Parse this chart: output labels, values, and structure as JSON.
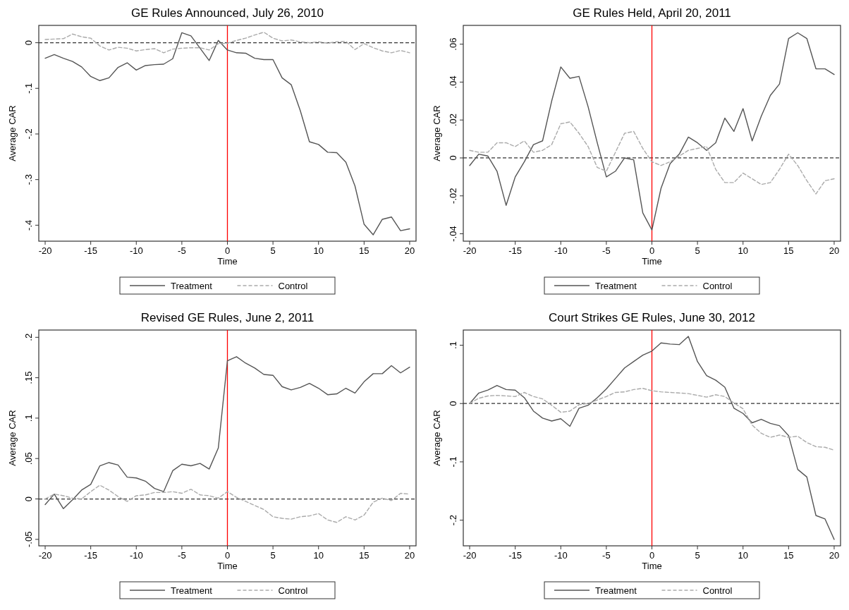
{
  "chart_data": [
    {
      "type": "line",
      "title": "GE Rules Announced, July 26, 2010",
      "xlabel": "Time",
      "ylabel": "Average CAR",
      "legend": "bottom",
      "x": [
        -20,
        -19,
        -18,
        -17,
        -16,
        -15,
        -14,
        -13,
        -12,
        -11,
        -10,
        -9,
        -8,
        -7,
        -6,
        -5,
        -4,
        -3,
        -2,
        -1,
        0,
        1,
        2,
        3,
        4,
        5,
        6,
        7,
        8,
        9,
        10,
        11,
        12,
        13,
        14,
        15,
        16,
        17,
        18,
        19,
        20
      ],
      "xlim": [
        -20.7,
        20.7
      ],
      "xticks": [
        -20,
        -15,
        -10,
        -5,
        0,
        5,
        10,
        15,
        20
      ],
      "ylim": [
        -0.435,
        0.038
      ],
      "yticks": [
        {
          "value": -0.4,
          "label": "-.4"
        },
        {
          "value": -0.3,
          "label": "-.3"
        },
        {
          "value": -0.2,
          "label": "-.2"
        },
        {
          "value": -0.1,
          "label": "-.1"
        },
        {
          "value": 0,
          "label": "0"
        }
      ],
      "grid": false,
      "marker": "none",
      "ref_lines": [
        {
          "axis": "y",
          "value": 0,
          "color": "#333333",
          "line_style": "dashed"
        },
        {
          "axis": "x",
          "value": 0,
          "color": "#ff0000"
        }
      ],
      "series": [
        {
          "name": "Treatment",
          "color": "#555555",
          "line_style": "solid",
          "values": [
            -0.034,
            -0.026,
            -0.034,
            -0.041,
            -0.053,
            -0.074,
            -0.083,
            -0.077,
            -0.054,
            -0.044,
            -0.06,
            -0.05,
            -0.048,
            -0.047,
            -0.035,
            0.022,
            0.015,
            -0.012,
            -0.039,
            0.005,
            -0.016,
            -0.022,
            -0.023,
            -0.034,
            -0.037,
            -0.037,
            -0.077,
            -0.092,
            -0.149,
            -0.217,
            -0.223,
            -0.24,
            -0.241,
            -0.262,
            -0.314,
            -0.398,
            -0.421,
            -0.387,
            -0.382,
            -0.412,
            -0.408
          ]
        },
        {
          "name": "Control",
          "color": "#aaaaaa",
          "line_style": "dashed",
          "values": [
            0.007,
            0.008,
            0.009,
            0.019,
            0.013,
            0.01,
            -0.007,
            -0.016,
            -0.01,
            -0.012,
            -0.018,
            -0.015,
            -0.013,
            -0.022,
            -0.014,
            -0.012,
            -0.011,
            -0.011,
            -0.016,
            -0.002,
            -0.001,
            0.005,
            0.01,
            0.017,
            0.023,
            0.01,
            0.004,
            0.006,
            0.002,
            0.0,
            0.002,
            -0.001,
            0.002,
            0.003,
            -0.015,
            -0.002,
            -0.011,
            -0.018,
            -0.022,
            -0.017,
            -0.022
          ]
        }
      ]
    },
    {
      "type": "line",
      "title": "GE Rules Held, April 20, 2011",
      "xlabel": "Time",
      "ylabel": "Average CAR",
      "legend": "bottom",
      "x": [
        -20,
        -19,
        -18,
        -17,
        -16,
        -15,
        -14,
        -13,
        -12,
        -11,
        -10,
        -9,
        -8,
        -7,
        -6,
        -5,
        -4,
        -3,
        -2,
        -1,
        0,
        1,
        2,
        3,
        4,
        5,
        6,
        7,
        8,
        9,
        10,
        11,
        12,
        13,
        14,
        15,
        16,
        17,
        18,
        19,
        20
      ],
      "xlim": [
        -20.7,
        20.7
      ],
      "xticks": [
        -20,
        -15,
        -10,
        -5,
        0,
        5,
        10,
        15,
        20
      ],
      "ylim": [
        -0.0439,
        0.0699
      ],
      "yticks": [
        {
          "value": -0.04,
          "label": "-.04"
        },
        {
          "value": -0.02,
          "label": "-.02"
        },
        {
          "value": 0,
          "label": "0"
        },
        {
          "value": 0.02,
          "label": ".02"
        },
        {
          "value": 0.04,
          "label": ".04"
        },
        {
          "value": 0.06,
          "label": ".06"
        }
      ],
      "grid": false,
      "marker": "none",
      "ref_lines": [
        {
          "axis": "y",
          "value": 0,
          "color": "#333333",
          "line_style": "dashed"
        },
        {
          "axis": "x",
          "value": 0,
          "color": "#ff0000"
        }
      ],
      "series": [
        {
          "name": "Treatment",
          "color": "#555555",
          "line_style": "solid",
          "values": [
            -0.004,
            0.002,
            0.001,
            -0.007,
            -0.025,
            -0.01,
            -0.002,
            0.007,
            0.009,
            0.03,
            0.048,
            0.042,
            0.043,
            0.027,
            0.008,
            -0.01,
            -0.007,
            0.0,
            -0.001,
            -0.029,
            -0.038,
            -0.016,
            -0.003,
            0.002,
            0.011,
            0.008,
            0.004,
            0.008,
            0.021,
            0.014,
            0.026,
            0.009,
            0.022,
            0.033,
            0.039,
            0.063,
            0.066,
            0.063,
            0.047,
            0.047,
            0.044
          ]
        },
        {
          "name": "Control",
          "color": "#aaaaaa",
          "line_style": "dashed",
          "values": [
            0.004,
            0.003,
            0.003,
            0.008,
            0.008,
            0.006,
            0.009,
            0.003,
            0.004,
            0.007,
            0.018,
            0.019,
            0.013,
            0.006,
            -0.005,
            -0.007,
            0.003,
            0.013,
            0.014,
            0.005,
            -0.002,
            -0.004,
            -0.002,
            0.001,
            0.004,
            0.005,
            0.006,
            -0.006,
            -0.013,
            -0.013,
            -0.008,
            -0.011,
            -0.014,
            -0.013,
            -0.006,
            0.002,
            -0.004,
            -0.012,
            -0.019,
            -0.012,
            -0.011
          ]
        }
      ]
    },
    {
      "type": "line",
      "title": "Revised GE Rules, June 2, 2011",
      "xlabel": "Time",
      "ylabel": "Average CAR",
      "legend": "bottom",
      "x": [
        -20,
        -19,
        -18,
        -17,
        -16,
        -15,
        -14,
        -13,
        -12,
        -11,
        -10,
        -9,
        -8,
        -7,
        -6,
        -5,
        -4,
        -3,
        -2,
        -1,
        0,
        1,
        2,
        3,
        4,
        5,
        6,
        7,
        8,
        9,
        10,
        11,
        12,
        13,
        14,
        15,
        16,
        17,
        18,
        19,
        20
      ],
      "xlim": [
        -20.7,
        20.7
      ],
      "xticks": [
        -20,
        -15,
        -10,
        -5,
        0,
        5,
        10,
        15,
        20
      ],
      "ylim": [
        -0.058,
        0.209
      ],
      "yticks": [
        {
          "value": -0.05,
          "label": "-.05"
        },
        {
          "value": 0,
          "label": "0"
        },
        {
          "value": 0.05,
          "label": ".05"
        },
        {
          "value": 0.1,
          "label": ".1"
        },
        {
          "value": 0.15,
          "label": ".15"
        },
        {
          "value": 0.2,
          "label": ".2"
        }
      ],
      "grid": false,
      "marker": "none",
      "ref_lines": [
        {
          "axis": "y",
          "value": 0,
          "color": "#333333",
          "line_style": "dashed"
        },
        {
          "axis": "x",
          "value": 0,
          "color": "#ff0000"
        }
      ],
      "series": [
        {
          "name": "Treatment",
          "color": "#555555",
          "line_style": "solid",
          "values": [
            -0.007,
            0.006,
            -0.012,
            -0.001,
            0.011,
            0.018,
            0.041,
            0.045,
            0.042,
            0.027,
            0.026,
            0.022,
            0.013,
            0.009,
            0.035,
            0.043,
            0.041,
            0.044,
            0.037,
            0.063,
            0.171,
            0.176,
            0.168,
            0.162,
            0.154,
            0.153,
            0.139,
            0.135,
            0.138,
            0.143,
            0.137,
            0.129,
            0.13,
            0.137,
            0.131,
            0.145,
            0.155,
            0.155,
            0.165,
            0.156,
            0.163
          ]
        },
        {
          "name": "Control",
          "color": "#aaaaaa",
          "line_style": "dashed",
          "values": [
            0.0,
            0.006,
            0.004,
            0.001,
            0.0,
            0.009,
            0.017,
            0.011,
            0.003,
            -0.003,
            0.004,
            0.005,
            0.008,
            0.008,
            0.009,
            0.007,
            0.012,
            0.005,
            0.004,
            0.001,
            0.009,
            0.002,
            -0.003,
            -0.008,
            -0.013,
            -0.022,
            -0.024,
            -0.025,
            -0.022,
            -0.021,
            -0.018,
            -0.026,
            -0.029,
            -0.022,
            -0.026,
            -0.02,
            -0.004,
            0.001,
            -0.002,
            0.007,
            0.006
          ]
        }
      ]
    },
    {
      "type": "line",
      "title": "Court Strikes GE Rules, June 30, 2012",
      "xlabel": "Time",
      "ylabel": "Average CAR",
      "legend": "bottom",
      "x": [
        -20,
        -19,
        -18,
        -17,
        -16,
        -15,
        -14,
        -13,
        -12,
        -11,
        -10,
        -9,
        -8,
        -7,
        -6,
        -5,
        -4,
        -3,
        -2,
        -1,
        0,
        1,
        2,
        3,
        4,
        5,
        6,
        7,
        8,
        9,
        10,
        11,
        12,
        13,
        14,
        15,
        16,
        17,
        18,
        19,
        20
      ],
      "xlim": [
        -20.7,
        20.7
      ],
      "xticks": [
        -20,
        -15,
        -10,
        -5,
        0,
        5,
        10,
        15,
        20
      ],
      "ylim": [
        -0.244,
        0.126
      ],
      "yticks": [
        {
          "value": -0.2,
          "label": "-.2"
        },
        {
          "value": -0.1,
          "label": "-.1"
        },
        {
          "value": 0,
          "label": "0"
        },
        {
          "value": 0.1,
          "label": ".1"
        }
      ],
      "grid": false,
      "marker": "none",
      "ref_lines": [
        {
          "axis": "y",
          "value": 0,
          "color": "#333333",
          "line_style": "dashed"
        },
        {
          "axis": "x",
          "value": 0,
          "color": "#ff0000"
        }
      ],
      "series": [
        {
          "name": "Treatment",
          "color": "#555555",
          "line_style": "solid",
          "values": [
            0.0,
            0.018,
            0.023,
            0.031,
            0.024,
            0.023,
            0.01,
            -0.013,
            -0.025,
            -0.03,
            -0.026,
            -0.039,
            -0.008,
            -0.003,
            0.01,
            0.025,
            0.043,
            0.061,
            0.072,
            0.083,
            0.09,
            0.104,
            0.102,
            0.101,
            0.115,
            0.072,
            0.048,
            0.04,
            0.028,
            -0.008,
            -0.017,
            -0.033,
            -0.027,
            -0.034,
            -0.038,
            -0.055,
            -0.113,
            -0.126,
            -0.192,
            -0.198,
            -0.233
          ]
        },
        {
          "name": "Control",
          "color": "#aaaaaa",
          "line_style": "dashed",
          "values": [
            0.0,
            0.009,
            0.013,
            0.014,
            0.013,
            0.012,
            0.019,
            0.012,
            0.008,
            -0.003,
            -0.015,
            -0.013,
            -0.002,
            0.0,
            0.006,
            0.012,
            0.019,
            0.02,
            0.024,
            0.026,
            0.022,
            0.02,
            0.019,
            0.018,
            0.017,
            0.014,
            0.011,
            0.015,
            0.012,
            0.001,
            -0.009,
            -0.037,
            -0.051,
            -0.058,
            -0.054,
            -0.058,
            -0.056,
            -0.067,
            -0.074,
            -0.075,
            -0.08
          ]
        }
      ]
    }
  ]
}
